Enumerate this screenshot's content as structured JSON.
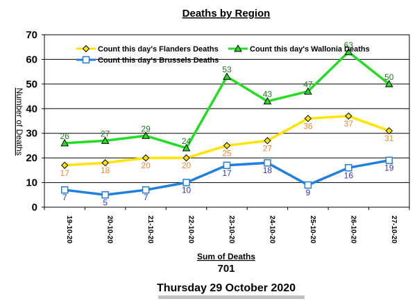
{
  "chart_data": {
    "type": "line",
    "title": "Deaths by Region",
    "ylabel": "Number of Deaths",
    "xlabel": "",
    "ylim": [
      0,
      70
    ],
    "yticks": [
      0,
      10,
      20,
      30,
      40,
      50,
      60,
      70
    ],
    "grid": true,
    "legend_position": "top",
    "categories": [
      "19-10-20",
      "20-10-20",
      "21-10-20",
      "22-10-20",
      "23-10-20",
      "24-10-20",
      "25-10-20",
      "26-10-20",
      "27-10-20"
    ],
    "series": [
      {
        "name": "Count this day's Flanders Deaths",
        "color": "#ffe400",
        "label_color": "#e8892a",
        "marker": "diamond",
        "values": [
          17,
          18,
          20,
          20,
          25,
          27,
          36,
          37,
          31
        ],
        "label_pos": "below"
      },
      {
        "name": "Count this day's Wallonia Deaths",
        "color": "#22dd22",
        "label_color": "#1f7a1f",
        "marker": "triangle",
        "values": [
          26,
          27,
          29,
          24,
          53,
          43,
          47,
          63,
          50
        ],
        "label_pos": "above"
      },
      {
        "name": "Count this day's Brussels Deaths",
        "color": "#1f7fe0",
        "label_color": "#3333bb",
        "marker": "square",
        "values": [
          7,
          5,
          7,
          10,
          17,
          18,
          9,
          16,
          19
        ],
        "label_pos": "below"
      }
    ]
  },
  "summary": {
    "label": "Sum of Deaths",
    "value": "701",
    "date": "Thursday 29 October 2020"
  }
}
